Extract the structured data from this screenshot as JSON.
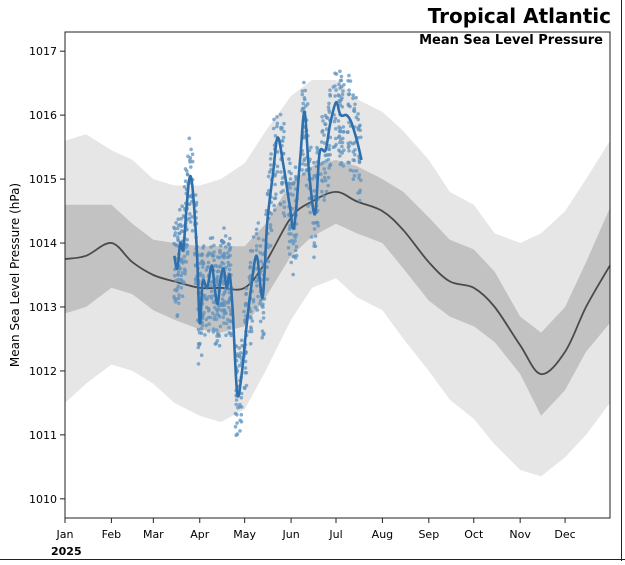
{
  "chart_data": {
    "type": "line",
    "title": "Tropical Atlantic",
    "subtitle": "Mean Sea Level Pressure",
    "xlabel": "",
    "ylabel": "Mean Sea Level Pressure (hPa)",
    "year_label": "2025",
    "ylim": [
      1009.7,
      1017.3
    ],
    "yticks": [
      1010,
      1011,
      1012,
      1013,
      1014,
      1015,
      1016,
      1017
    ],
    "xlim": [
      "2025-01-01",
      "2025-12-31"
    ],
    "xticks": [
      {
        "date": "2025-01-01",
        "label": "Jan"
      },
      {
        "date": "2025-02-01",
        "label": "Feb"
      },
      {
        "date": "2025-03-01",
        "label": "Mar"
      },
      {
        "date": "2025-04-01",
        "label": "Apr"
      },
      {
        "date": "2025-05-01",
        "label": "May"
      },
      {
        "date": "2025-06-01",
        "label": "Jun"
      },
      {
        "date": "2025-07-01",
        "label": "Jul"
      },
      {
        "date": "2025-08-01",
        "label": "Aug"
      },
      {
        "date": "2025-09-01",
        "label": "Sep"
      },
      {
        "date": "2025-10-01",
        "label": "Oct"
      },
      {
        "date": "2025-11-01",
        "label": "Nov"
      },
      {
        "date": "2025-12-01",
        "label": "Dec"
      }
    ],
    "grid": false,
    "colors": {
      "outer_band": "#e6e6e6",
      "inner_band": "#c2c2c2",
      "climatology": "#4a4a4a",
      "observed": "#2e6fad",
      "members": "#5f93bf"
    },
    "climatology": {
      "dates": [
        "2025-01-01",
        "2025-01-15",
        "2025-02-01",
        "2025-02-15",
        "2025-03-01",
        "2025-03-15",
        "2025-04-01",
        "2025-04-15",
        "2025-05-01",
        "2025-05-15",
        "2025-06-01",
        "2025-06-15",
        "2025-07-01",
        "2025-07-15",
        "2025-08-01",
        "2025-08-15",
        "2025-09-01",
        "2025-09-15",
        "2025-10-01",
        "2025-10-15",
        "2025-11-01",
        "2025-11-15",
        "2025-12-01",
        "2025-12-15",
        "2025-12-31"
      ],
      "median": [
        1013.75,
        1013.8,
        1014.0,
        1013.7,
        1013.5,
        1013.4,
        1013.3,
        1013.3,
        1013.3,
        1013.7,
        1014.4,
        1014.65,
        1014.8,
        1014.65,
        1014.5,
        1014.2,
        1013.7,
        1013.4,
        1013.3,
        1013.0,
        1012.4,
        1011.95,
        1012.3,
        1013.0,
        1013.65
      ],
      "p25": [
        1012.9,
        1013.0,
        1013.3,
        1013.2,
        1012.95,
        1012.8,
        1012.65,
        1012.6,
        1012.7,
        1013.15,
        1013.8,
        1014.1,
        1014.3,
        1014.15,
        1014.0,
        1013.6,
        1013.1,
        1012.85,
        1012.7,
        1012.45,
        1011.95,
        1011.3,
        1011.7,
        1012.3,
        1012.75
      ],
      "p75": [
        1014.6,
        1014.6,
        1014.6,
        1014.3,
        1014.05,
        1014.0,
        1013.95,
        1013.95,
        1013.95,
        1014.3,
        1014.95,
        1015.2,
        1015.3,
        1015.2,
        1015.0,
        1014.8,
        1014.4,
        1014.05,
        1013.9,
        1013.55,
        1012.85,
        1012.6,
        1013.0,
        1013.7,
        1014.55
      ],
      "p05": [
        1011.5,
        1011.8,
        1012.1,
        1012.0,
        1011.8,
        1011.5,
        1011.3,
        1011.2,
        1011.4,
        1012.0,
        1012.8,
        1013.3,
        1013.45,
        1013.15,
        1012.95,
        1012.5,
        1012.0,
        1011.55,
        1011.25,
        1010.85,
        1010.45,
        1010.35,
        1010.65,
        1011.0,
        1011.5
      ],
      "p95": [
        1015.6,
        1015.7,
        1015.45,
        1015.3,
        1015.0,
        1014.9,
        1014.9,
        1015.0,
        1015.25,
        1015.75,
        1016.3,
        1016.55,
        1016.55,
        1016.25,
        1016.05,
        1015.75,
        1015.3,
        1014.8,
        1014.6,
        1014.15,
        1014.0,
        1014.15,
        1014.5,
        1015.0,
        1015.6
      ]
    },
    "series": [
      {
        "dates": [
          "2025-03-15",
          "2025-03-17",
          "2025-03-19",
          "2025-03-21",
          "2025-03-23",
          "2025-03-25",
          "2025-03-27",
          "2025-03-30",
          "2025-04-01",
          "2025-04-03",
          "2025-04-06",
          "2025-04-09",
          "2025-04-11",
          "2025-04-13",
          "2025-04-15",
          "2025-04-17",
          "2025-04-19",
          "2025-04-21",
          "2025-04-23",
          "2025-04-26",
          "2025-04-29",
          "2025-05-02",
          "2025-05-05",
          "2025-05-09",
          "2025-05-13",
          "2025-05-16",
          "2025-05-20",
          "2025-05-23",
          "2025-05-27",
          "2025-05-31",
          "2025-06-03",
          "2025-06-07",
          "2025-06-10",
          "2025-06-13",
          "2025-06-17",
          "2025-06-20",
          "2025-06-24",
          "2025-06-27",
          "2025-07-01",
          "2025-07-04",
          "2025-07-08",
          "2025-07-11",
          "2025-07-15",
          "2025-07-18"
        ],
        "values": [
          1013.8,
          1013.6,
          1014.0,
          1013.9,
          1014.5,
          1015.0,
          1014.9,
          1013.9,
          1012.75,
          1013.4,
          1013.3,
          1013.65,
          1013.3,
          1013.05,
          1013.45,
          1013.6,
          1013.3,
          1013.5,
          1012.95,
          1011.65,
          1011.95,
          1012.65,
          1013.25,
          1013.8,
          1013.15,
          1014.3,
          1015.1,
          1015.65,
          1015.2,
          1014.6,
          1014.25,
          1015.3,
          1016.05,
          1015.1,
          1014.45,
          1015.4,
          1015.45,
          1015.85,
          1016.2,
          1016.0,
          1016.0,
          1015.9,
          1015.6,
          1015.3
        ]
      }
    ]
  }
}
